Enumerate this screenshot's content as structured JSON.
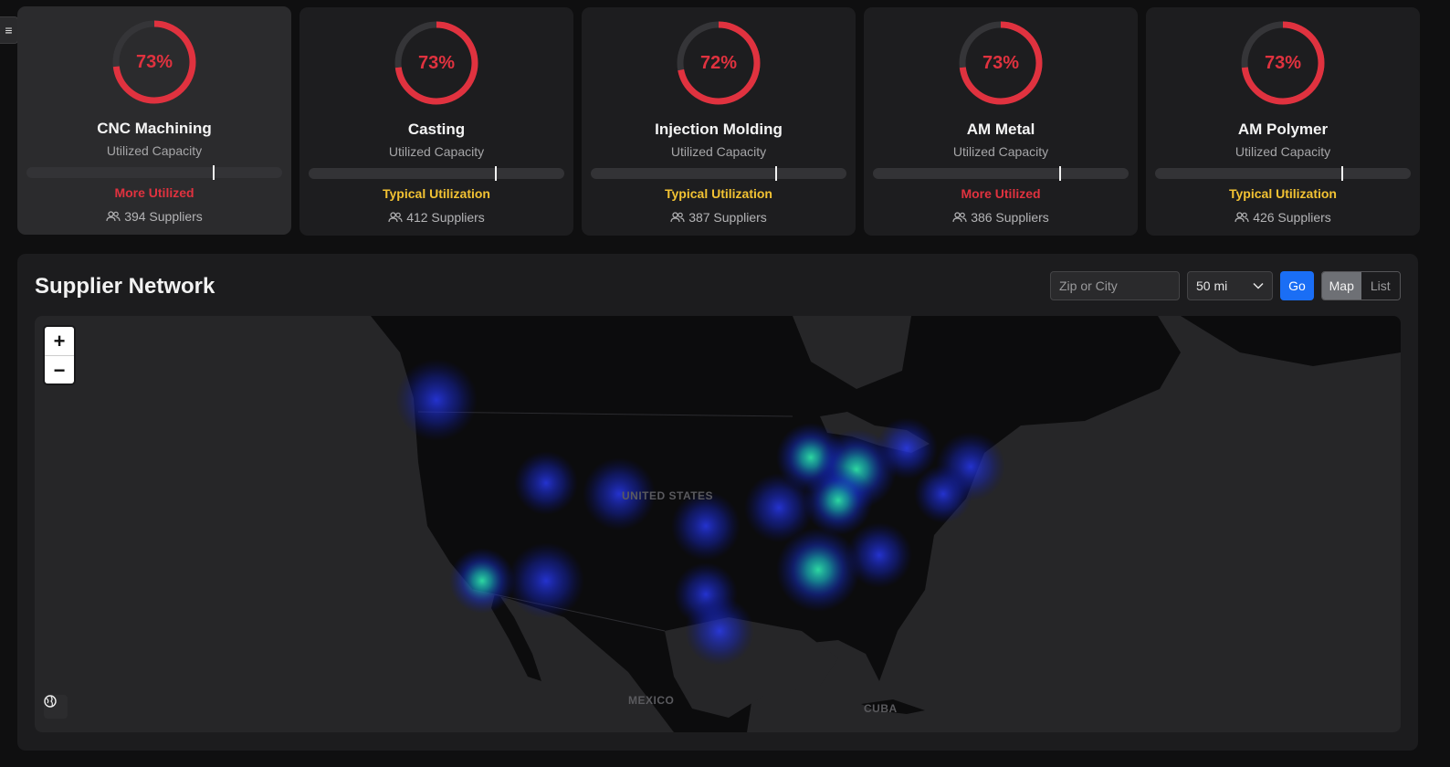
{
  "menu": {
    "icon": "hamburger-menu-icon",
    "glyph": "≡"
  },
  "cards": [
    {
      "percent_label": "73%",
      "percent": 73,
      "title": "CNC Machining",
      "subtitle": "Utilized Capacity",
      "marker": 0.73,
      "status": "More Utilized",
      "status_color": "#e0323f",
      "suppliers": "394 Suppliers"
    },
    {
      "percent_label": "73%",
      "percent": 73,
      "title": "Casting",
      "subtitle": "Utilized Capacity",
      "marker": 0.73,
      "status": "Typical Utilization",
      "status_color": "#f2c233",
      "suppliers": "412 Suppliers"
    },
    {
      "percent_label": "72%",
      "percent": 72,
      "title": "Injection Molding",
      "subtitle": "Utilized Capacity",
      "marker": 0.72,
      "status": "Typical Utilization",
      "status_color": "#f2c233",
      "suppliers": "387 Suppliers"
    },
    {
      "percent_label": "73%",
      "percent": 73,
      "title": "AM Metal",
      "subtitle": "Utilized Capacity",
      "marker": 0.73,
      "status": "More Utilized",
      "status_color": "#e0323f",
      "suppliers": "386 Suppliers"
    },
    {
      "percent_label": "73%",
      "percent": 73,
      "title": "AM Polymer",
      "subtitle": "Utilized Capacity",
      "marker": 0.73,
      "status": "Typical Utilization",
      "status_color": "#f2c233",
      "suppliers": "426 Suppliers"
    }
  ],
  "colors": {
    "ring": "#e0323f",
    "ring_track": "#353538",
    "accent": "#1a6ef5"
  },
  "panel": {
    "title": "Supplier Network",
    "search_placeholder": "Zip or City",
    "radius_value": "50 mi",
    "go_label": "Go",
    "view_map": "Map",
    "view_list": "List",
    "zoom_in": "+",
    "zoom_out": "−"
  },
  "map": {
    "labels": {
      "us": "UNITED STATES",
      "mexico": "MEXICO",
      "cuba": "CUBA"
    }
  }
}
